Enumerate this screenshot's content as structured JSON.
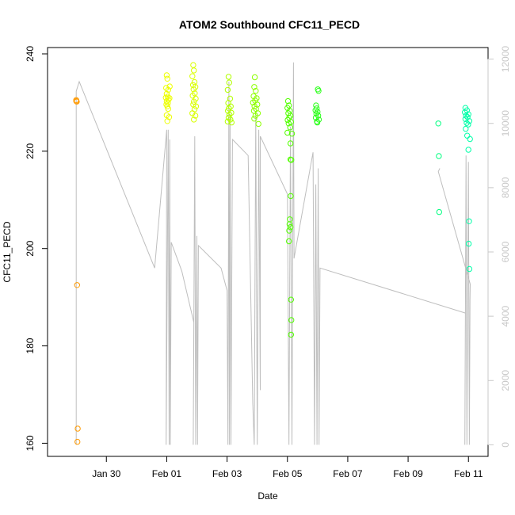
{
  "chart_data": {
    "type": "scatter",
    "title": "ATOM2 Southbound CFC11_PECD",
    "xlabel": "Date",
    "ylabel": "CFC11_PECD",
    "x_unit": "days since Jan 30 (ticks labeled by date)",
    "xlim": [
      -1.95,
      12.65
    ],
    "ylim": [
      157.3,
      241.3
    ],
    "y2lim": [
      -360,
      12360
    ],
    "x_ticks": [
      {
        "value": 0,
        "label": "Jan 30"
      },
      {
        "value": 2,
        "label": "Feb 01"
      },
      {
        "value": 4,
        "label": "Feb 03"
      },
      {
        "value": 6,
        "label": "Feb 05"
      },
      {
        "value": 8,
        "label": "Feb 07"
      },
      {
        "value": 10,
        "label": "Feb 09"
      },
      {
        "value": 12,
        "label": "Feb 11"
      }
    ],
    "y_ticks": [
      160,
      180,
      200,
      220,
      240
    ],
    "y2_ticks": [
      0,
      2000,
      4000,
      6000,
      8000,
      10000,
      12000
    ],
    "grid": false,
    "legend": "none",
    "colors": {
      "jan28": "#FF9900",
      "feb01": "#EDFF00",
      "feb02": "#D9FF00",
      "feb03": "#B2FF00",
      "feb04": "#8CFF00",
      "feb05": "#52FF00",
      "feb06": "#2BFF1A",
      "feb10": "#00FF80",
      "feb11": "#00FFA8",
      "altitude_line": "#BEBEBE"
    },
    "series": [
      {
        "name": "",
        "color_key": "jan28",
        "points": [
          [
            -1.0,
            230.3
          ],
          [
            -1.0,
            230.5
          ],
          [
            -0.98,
            230.2
          ],
          [
            -0.97,
            192.5
          ],
          [
            -0.95,
            163.0
          ],
          [
            -0.96,
            160.3
          ]
        ]
      },
      {
        "name": "",
        "color_key": "feb01",
        "points": [
          [
            2.0,
            235.6
          ],
          [
            2.02,
            234.9
          ],
          [
            1.98,
            233.0
          ],
          [
            2.05,
            232.6
          ],
          [
            2.0,
            231.8
          ],
          [
            2.03,
            231.2
          ],
          [
            1.97,
            231.0
          ],
          [
            2.06,
            230.6
          ],
          [
            2.0,
            230.3
          ],
          [
            2.04,
            229.9
          ],
          [
            1.99,
            229.6
          ],
          [
            2.02,
            229.2
          ],
          [
            2.05,
            228.7
          ],
          [
            2.0,
            227.4
          ],
          [
            2.08,
            227.0
          ],
          [
            2.02,
            226.2
          ],
          [
            2.1,
            233.3
          ],
          [
            2.09,
            230.9
          ]
        ]
      },
      {
        "name": "",
        "color_key": "feb02",
        "points": [
          [
            2.88,
            237.7
          ],
          [
            2.9,
            236.6
          ],
          [
            2.85,
            235.4
          ],
          [
            2.92,
            234.2
          ],
          [
            2.87,
            233.6
          ],
          [
            2.95,
            233.2
          ],
          [
            2.89,
            232.7
          ],
          [
            2.93,
            231.9
          ],
          [
            2.86,
            231.4
          ],
          [
            2.96,
            230.8
          ],
          [
            2.9,
            230.2
          ],
          [
            2.88,
            229.6
          ],
          [
            2.97,
            229.2
          ],
          [
            2.92,
            228.6
          ],
          [
            2.85,
            227.8
          ],
          [
            2.95,
            227.3
          ],
          [
            2.9,
            226.5
          ]
        ]
      },
      {
        "name": "",
        "color_key": "feb03",
        "points": [
          [
            4.05,
            235.3
          ],
          [
            4.07,
            234.1
          ],
          [
            4.02,
            232.6
          ],
          [
            4.1,
            230.8
          ],
          [
            4.04,
            229.9
          ],
          [
            4.12,
            229.2
          ],
          [
            4.06,
            228.8
          ],
          [
            4.03,
            228.3
          ],
          [
            4.14,
            227.9
          ],
          [
            4.08,
            227.5
          ],
          [
            4.05,
            226.9
          ],
          [
            4.11,
            226.5
          ],
          [
            4.02,
            226.1
          ],
          [
            4.15,
            225.9
          ]
        ]
      },
      {
        "name": "",
        "color_key": "feb04",
        "points": [
          [
            4.92,
            235.2
          ],
          [
            4.9,
            233.2
          ],
          [
            4.95,
            232.4
          ],
          [
            4.88,
            231.3
          ],
          [
            4.98,
            230.9
          ],
          [
            4.93,
            230.4
          ],
          [
            4.86,
            230.0
          ],
          [
            5.0,
            229.6
          ],
          [
            4.91,
            229.2
          ],
          [
            4.96,
            228.7
          ],
          [
            4.89,
            228.3
          ],
          [
            5.02,
            227.8
          ],
          [
            4.94,
            227.3
          ],
          [
            4.9,
            226.7
          ],
          [
            5.04,
            225.6
          ]
        ]
      },
      {
        "name": "",
        "color_key": "feb05",
        "points": [
          [
            6.02,
            230.3
          ],
          [
            6.05,
            229.4
          ],
          [
            6.0,
            228.9
          ],
          [
            6.08,
            228.3
          ],
          [
            6.03,
            227.8
          ],
          [
            6.1,
            227.3
          ],
          [
            6.06,
            226.9
          ],
          [
            6.01,
            226.4
          ],
          [
            6.12,
            226.0
          ],
          [
            6.04,
            225.7
          ],
          [
            6.09,
            224.9
          ],
          [
            6.0,
            223.8
          ],
          [
            6.15,
            223.6
          ],
          [
            6.1,
            221.6
          ],
          [
            6.13,
            218.2
          ],
          [
            6.1,
            218.3
          ],
          [
            6.11,
            210.8
          ],
          [
            6.08,
            206.0
          ],
          [
            6.07,
            205.0
          ],
          [
            6.1,
            204.4
          ],
          [
            6.06,
            203.7
          ],
          [
            6.05,
            201.5
          ],
          [
            6.12,
            189.5
          ],
          [
            6.13,
            185.3
          ],
          [
            6.12,
            182.3
          ]
        ]
      },
      {
        "name": "",
        "color_key": "feb06",
        "points": [
          [
            6.95,
            229.4
          ],
          [
            6.97,
            228.8
          ],
          [
            6.93,
            228.4
          ],
          [
            7.0,
            228.1
          ],
          [
            6.96,
            227.7
          ],
          [
            7.02,
            227.3
          ],
          [
            6.94,
            226.9
          ],
          [
            7.04,
            226.5
          ],
          [
            6.98,
            226.1
          ],
          [
            7.01,
            232.7
          ],
          [
            7.03,
            232.4
          ],
          [
            6.99,
            225.9
          ]
        ]
      },
      {
        "name": "",
        "color_key": "feb10",
        "points": [
          [
            11.0,
            225.7
          ],
          [
            11.02,
            219.0
          ],
          [
            11.03,
            207.5
          ]
        ]
      },
      {
        "name": "",
        "color_key": "feb11",
        "points": [
          [
            11.9,
            228.9
          ],
          [
            11.95,
            228.4
          ],
          [
            11.88,
            228.0
          ],
          [
            12.0,
            227.6
          ],
          [
            11.92,
            227.3
          ],
          [
            11.97,
            227.0
          ],
          [
            11.9,
            226.6
          ],
          [
            12.03,
            226.2
          ],
          [
            11.94,
            225.8
          ],
          [
            11.99,
            225.5
          ],
          [
            11.91,
            224.6
          ],
          [
            12.05,
            222.5
          ],
          [
            11.96,
            223.2
          ],
          [
            12.0,
            220.3
          ],
          [
            12.02,
            205.6
          ],
          [
            12.01,
            201.0
          ],
          [
            12.03,
            195.8
          ]
        ]
      }
    ],
    "altitude_series": {
      "name": "",
      "axis": "right",
      "points": [
        [
          -1.0,
          0
        ],
        [
          -1.0,
          11000
        ],
        [
          -0.9,
          11300
        ],
        [
          1.6,
          5500
        ],
        [
          2.0,
          9800
        ],
        [
          1.98,
          0
        ],
        [
          2.05,
          9800
        ],
        [
          2.08,
          0
        ],
        [
          2.1,
          9500
        ],
        [
          2.12,
          0
        ],
        [
          2.15,
          6300
        ],
        [
          2.5,
          5400
        ],
        [
          2.9,
          3800
        ],
        [
          2.88,
          0
        ],
        [
          2.93,
          9600
        ],
        [
          2.96,
          0
        ],
        [
          3.0,
          6500
        ],
        [
          3.02,
          0
        ],
        [
          3.05,
          6200
        ],
        [
          3.8,
          5500
        ],
        [
          4.0,
          4800
        ],
        [
          4.03,
          0
        ],
        [
          4.06,
          11300
        ],
        [
          4.08,
          0
        ],
        [
          4.1,
          10300
        ],
        [
          4.13,
          0
        ],
        [
          4.18,
          9500
        ],
        [
          4.7,
          9000
        ],
        [
          4.85,
          1300
        ],
        [
          4.9,
          0
        ],
        [
          4.95,
          10300
        ],
        [
          5.0,
          0
        ],
        [
          5.05,
          9800
        ],
        [
          5.1,
          1700
        ],
        [
          5.1,
          9600
        ],
        [
          6.0,
          7800
        ],
        [
          6.05,
          0
        ],
        [
          6.1,
          9900
        ],
        [
          6.15,
          0
        ],
        [
          6.2,
          11900
        ],
        [
          6.22,
          5800
        ],
        [
          6.85,
          9100
        ],
        [
          6.9,
          0
        ],
        [
          6.94,
          8100
        ],
        [
          6.98,
          0
        ],
        [
          7.02,
          8600
        ],
        [
          7.05,
          0
        ],
        [
          7.08,
          5500
        ],
        [
          11.9,
          4100
        ],
        [
          11.88,
          0
        ],
        [
          11.92,
          9000
        ],
        [
          11.95,
          0
        ],
        [
          12.0,
          8800
        ],
        [
          12.03,
          0
        ],
        [
          12.05,
          4500
        ],
        [
          12.06,
          5000
        ],
        [
          11.0,
          8500
        ],
        [
          11.05,
          8600
        ]
      ]
    }
  }
}
